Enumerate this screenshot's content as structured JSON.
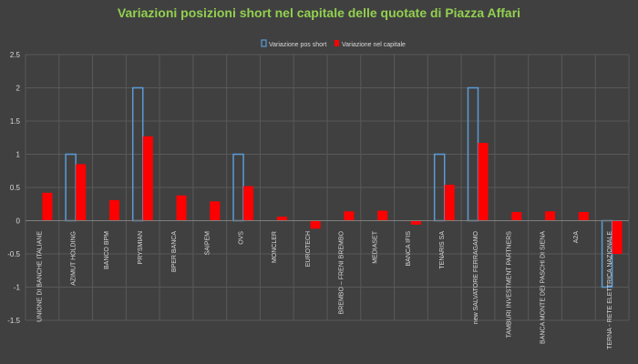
{
  "chart_data": {
    "type": "bar",
    "title": "Variazioni posizioni short nel capitale delle quotate di Piazza Affari",
    "xlabel": "",
    "ylabel": "",
    "ylim": [
      -1.5,
      2.5
    ],
    "y_ticks": [
      -1.5,
      -1,
      -0.5,
      0,
      0.5,
      1,
      1.5,
      2,
      2.5
    ],
    "grid": true,
    "legend": "top-center",
    "categories": [
      "UNIONE DI BANCHE ITALIANE",
      "AZIMUT HOLDING",
      "BANCO BPM",
      "PRYSMIAN",
      "BPER BANCA",
      "SAIPEM",
      "OVS",
      "MONCLER",
      "EUROTECH",
      "BREMBO – FRENI BREMBO",
      "MEDIASET",
      "BANCA IFIS",
      "TENARIS SA",
      "new SALVATORE FERRAGAMO",
      "TAMBURI INVESTMENT PARTNERS",
      "BANCA MONTE DEI PASCHI DI SIENA",
      "A2A",
      "TERNA - RETE ELETTRICA NAZIONALE"
    ],
    "series": [
      {
        "name": "Variazione pos short",
        "style": "outline",
        "color": "#5b9bd5",
        "values": [
          0,
          1,
          0,
          2,
          0,
          0,
          1,
          0,
          0,
          0,
          0,
          0,
          1,
          2,
          0,
          0,
          0,
          -1
        ]
      },
      {
        "name": "Variazione nel capitale",
        "style": "filled",
        "color": "#ff0000",
        "values": [
          0.42,
          0.85,
          0.31,
          1.27,
          0.38,
          0.29,
          0.52,
          0.06,
          -0.12,
          0.14,
          0.15,
          -0.06,
          0.54,
          1.17,
          0.13,
          0.14,
          0.13,
          -0.5
        ]
      }
    ]
  }
}
